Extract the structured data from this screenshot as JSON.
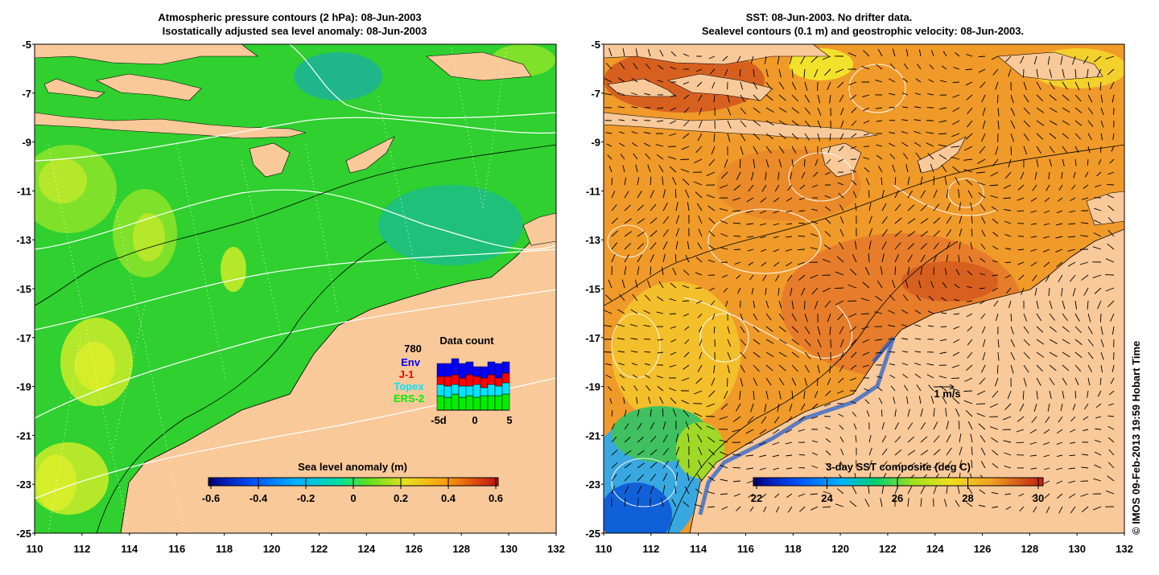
{
  "left_panel": {
    "title_line1": "Atmospheric pressure contours (2 hPa): 08-Jun-2003",
    "title_line2": "Isostatically adjusted sea level anomaly: 08-Jun-2003",
    "colorbar_label": "Sea level anomaly (m)",
    "colorbar_ticks": [
      "-0.6",
      "-0.4",
      "-0.2",
      "0",
      "0.2",
      "0.4",
      "0.6"
    ],
    "colors": {
      "ocean": "#2fd02f",
      "ocean_light": "#7fe12a",
      "ocean_yellow": "#c8ec2a",
      "ocean_teal": "#1fb78a",
      "land": "#f9c99a"
    }
  },
  "right_panel": {
    "title_line1": "SST: 08-Jun-2003. No drifter data.",
    "title_line2": "Sealevel contours (0.1 m) and geostrophic velocity: 08-Jun-2003.",
    "colorbar_label": "3-day SST composite (deg C)",
    "colorbar_ticks": [
      "22",
      "24",
      "26",
      "28",
      "30"
    ],
    "velocity_scale": "1 m/s",
    "colors": {
      "ocean": "#f09a2a",
      "ocean_hot": "#d8601f",
      "ocean_cool": "#f3c52b",
      "land": "#f9c99a"
    }
  },
  "axes": {
    "y_ticks": [
      "-5",
      "-7",
      "-9",
      "-11",
      "-13",
      "-15",
      "-17",
      "-19",
      "-21",
      "-23",
      "-25"
    ],
    "x_ticks": [
      "110",
      "112",
      "114",
      "116",
      "118",
      "120",
      "122",
      "124",
      "126",
      "128",
      "130",
      "132"
    ]
  },
  "data_count": {
    "title": "Data count",
    "total": "780",
    "series": [
      {
        "name": "Env",
        "color": "#0000ff"
      },
      {
        "name": "J-1",
        "color": "#ff0000"
      },
      {
        "name": "Topex",
        "color": "#00e5ff"
      },
      {
        "name": "ERS-2",
        "color": "#00ee00"
      }
    ],
    "x_ticks": [
      "-5d",
      "0",
      "5"
    ]
  },
  "credit": "© IMOS 09-Feb-2013 19:59 Hobart Time"
}
